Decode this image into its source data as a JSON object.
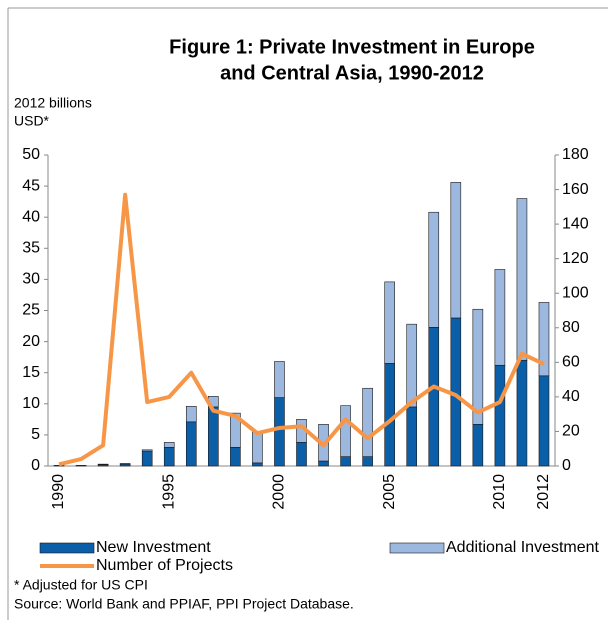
{
  "chart_data": {
    "type": "bar",
    "stacked": true,
    "title": [
      "Figure 1: Private Investment in Europe",
      "and Central Asia, 1990-2012"
    ],
    "ylabel": [
      "2012 billions",
      "USD*"
    ],
    "categories": [
      "1990",
      null,
      null,
      null,
      null,
      "1995",
      null,
      null,
      null,
      null,
      "2000",
      null,
      null,
      null,
      null,
      "2005",
      null,
      null,
      null,
      null,
      "2010",
      null,
      "2012"
    ],
    "series": [
      {
        "name": "New Investment",
        "type": "bar",
        "color": "#0b5ea8",
        "values": [
          0.1,
          0.1,
          0.2,
          0.3,
          2.4,
          3.0,
          7.1,
          9.5,
          3.0,
          0.5,
          11.0,
          3.8,
          0.8,
          1.5,
          1.5,
          16.5,
          9.5,
          22.3,
          23.8,
          6.7,
          16.2,
          17.0,
          14.5
        ]
      },
      {
        "name": "Additional Investment",
        "type": "bar",
        "color": "#9db8df",
        "values": [
          0,
          0,
          0.1,
          0.1,
          0.2,
          0.8,
          2.5,
          1.7,
          5.5,
          5.0,
          5.8,
          3.7,
          5.9,
          8.2,
          11.0,
          13.1,
          13.3,
          18.5,
          21.8,
          18.5,
          15.4,
          26.0,
          11.8
        ]
      },
      {
        "name": "Number of Projects",
        "type": "line",
        "axis": "y2",
        "color": "#f79646",
        "values": [
          1,
          4,
          12,
          157,
          37,
          40,
          54,
          32,
          29,
          19,
          22,
          23,
          12,
          27,
          16,
          26,
          37,
          46,
          41,
          31,
          37,
          65,
          59
        ]
      }
    ],
    "ylim": [
      0,
      50
    ],
    "yticks": [
      0,
      5,
      10,
      15,
      20,
      25,
      30,
      35,
      40,
      45,
      50
    ],
    "y2lim": [
      0,
      180
    ],
    "y2ticks": [
      0,
      20,
      40,
      60,
      80,
      100,
      120,
      140,
      160,
      180
    ],
    "notes": [
      "* Adjusted for US CPI",
      "Source:  World Bank and PPIAF, PPI Project Database."
    ]
  }
}
